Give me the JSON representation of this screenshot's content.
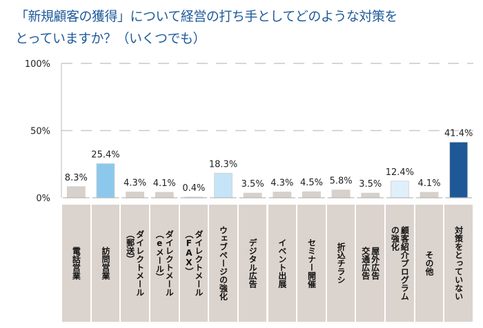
{
  "title": {
    "line1": "「新規顧客の獲得」について経営の打ち手としてどのような対策を",
    "line2": "とっていますか？（いくつでも）"
  },
  "chart_data": {
    "type": "bar",
    "title": "「新規顧客の獲得」について経営の打ち手としてどのような対策をとっていますか？（いくつでも）",
    "xlabel": "",
    "ylabel": "",
    "ylim": [
      0,
      100
    ],
    "yticks": [
      0,
      50,
      100
    ],
    "ytick_labels": [
      "0%",
      "50%",
      "100%"
    ],
    "grid": "dashed horizontal at 50% and 100%",
    "legend": "none",
    "categories": [
      "電話営業",
      "訪問営業",
      "ダイレクトメール（郵送）",
      "ダイレクトメール（eメール）",
      "ダイレクトメール（FAX）",
      "ウェブページの強化",
      "デジタル広告",
      "イベント出展",
      "セミナー開催",
      "折込チラシ",
      "屋外広告 交通広告",
      "顧客紹介プログラムの強化",
      "その他",
      "対策をとっていない"
    ],
    "category_label_lines": [
      [
        "電話営業"
      ],
      [
        "訪問営業"
      ],
      [
        "ダイレクトメール",
        "（郵送）"
      ],
      [
        "ダイレクトメール",
        "（eメール）"
      ],
      [
        "ダイレクトメール",
        "（FAX）"
      ],
      [
        "ウェブページの強化"
      ],
      [
        "デジタル広告"
      ],
      [
        "イベント出展"
      ],
      [
        "セミナー開催"
      ],
      [
        "折込チラシ"
      ],
      [
        "屋外広告",
        "交通広告"
      ],
      [
        "顧客紹介プログラム",
        "の強化"
      ],
      [
        "その他"
      ],
      [
        "対策をとっていない"
      ]
    ],
    "values": [
      8.3,
      25.4,
      4.3,
      4.1,
      0.4,
      18.3,
      3.5,
      4.3,
      4.5,
      5.8,
      3.5,
      12.4,
      4.1,
      41.4
    ],
    "value_labels": [
      "8.3%",
      "25.4%",
      "4.3%",
      "4.1%",
      "0.4%",
      "18.3%",
      "3.5%",
      "4.3%",
      "4.5%",
      "5.8%",
      "3.5%",
      "12.4%",
      "4.1%",
      "41.4%"
    ],
    "bar_colors": [
      "#d8d0ca",
      "#8cc8ec",
      "#d8d0ca",
      "#d8d0ca",
      "#d8d0ca",
      "#c6e4f7",
      "#d8d0ca",
      "#d8d0ca",
      "#d8d0ca",
      "#d8d0ca",
      "#d8d0ca",
      "#dff0fa",
      "#d8d0ca",
      "#1f5896"
    ]
  },
  "colors": {
    "title": "#1f5b9a",
    "axis": "#b8b8b8",
    "grid": "#c8c8c8",
    "label_box": "#dbd3cd"
  }
}
